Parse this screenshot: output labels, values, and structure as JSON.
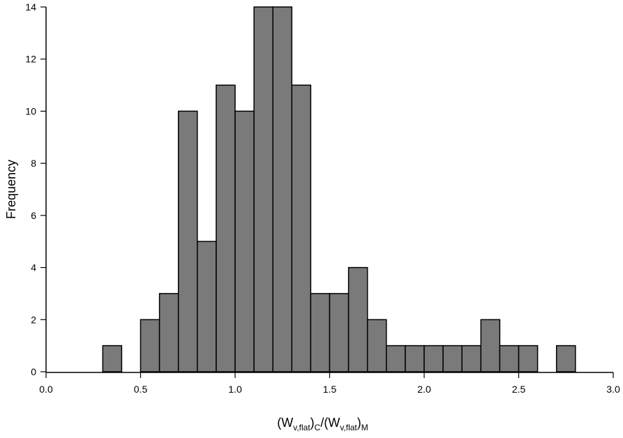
{
  "chart_data": {
    "type": "bar",
    "title": "",
    "xlabel": {
      "prefix": "(W",
      "sub1": "v,flat",
      "mid": ")",
      "sub2": "C",
      "slash": "/(W",
      "sub3": "v,flat",
      "end": ")",
      "sub4": "M"
    },
    "ylabel": "Frequency",
    "bin_width": 0.1,
    "bins": [
      {
        "x0": 0.3,
        "count": 1
      },
      {
        "x0": 0.5,
        "count": 2
      },
      {
        "x0": 0.6,
        "count": 3
      },
      {
        "x0": 0.7,
        "count": 10
      },
      {
        "x0": 0.8,
        "count": 5
      },
      {
        "x0": 0.9,
        "count": 11
      },
      {
        "x0": 1.0,
        "count": 10
      },
      {
        "x0": 1.1,
        "count": 14
      },
      {
        "x0": 1.2,
        "count": 14
      },
      {
        "x0": 1.3,
        "count": 11
      },
      {
        "x0": 1.4,
        "count": 3
      },
      {
        "x0": 1.5,
        "count": 3
      },
      {
        "x0": 1.6,
        "count": 4
      },
      {
        "x0": 1.7,
        "count": 2
      },
      {
        "x0": 1.8,
        "count": 1
      },
      {
        "x0": 1.9,
        "count": 1
      },
      {
        "x0": 2.0,
        "count": 1
      },
      {
        "x0": 2.1,
        "count": 1
      },
      {
        "x0": 2.2,
        "count": 1
      },
      {
        "x0": 2.3,
        "count": 2
      },
      {
        "x0": 2.4,
        "count": 1
      },
      {
        "x0": 2.5,
        "count": 1
      },
      {
        "x0": 2.7,
        "count": 1
      }
    ],
    "xlim": [
      0.0,
      3.0
    ],
    "ylim": [
      0,
      14
    ],
    "xticks": [
      {
        "value": 0.0,
        "label": "0.0"
      },
      {
        "value": 0.5,
        "label": "0.5"
      },
      {
        "value": 1.0,
        "label": "1.0"
      },
      {
        "value": 1.5,
        "label": "1.5"
      },
      {
        "value": 2.0,
        "label": "2.0"
      },
      {
        "value": 2.5,
        "label": "2.5"
      },
      {
        "value": 3.0,
        "label": "3.0"
      }
    ],
    "yticks": [
      {
        "value": 0,
        "label": "0"
      },
      {
        "value": 2,
        "label": "2"
      },
      {
        "value": 4,
        "label": "4"
      },
      {
        "value": 6,
        "label": "6"
      },
      {
        "value": 8,
        "label": "8"
      },
      {
        "value": 10,
        "label": "10"
      },
      {
        "value": 12,
        "label": "12"
      },
      {
        "value": 14,
        "label": "14"
      }
    ],
    "grid": false,
    "bar_color": "#7a7a7a",
    "edge_color": "#000000"
  }
}
